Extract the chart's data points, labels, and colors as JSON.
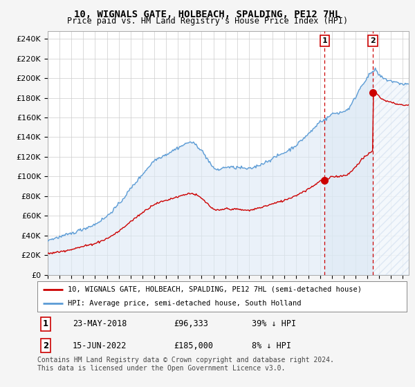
{
  "title": "10, WIGNALS GATE, HOLBEACH, SPALDING, PE12 7HL",
  "subtitle": "Price paid vs. HM Land Registry's House Price Index (HPI)",
  "ylabel_ticks": [
    "£0",
    "£20K",
    "£40K",
    "£60K",
    "£80K",
    "£100K",
    "£120K",
    "£140K",
    "£160K",
    "£180K",
    "£200K",
    "£220K",
    "£240K"
  ],
  "ytick_vals": [
    0,
    20000,
    40000,
    60000,
    80000,
    100000,
    120000,
    140000,
    160000,
    180000,
    200000,
    220000,
    240000
  ],
  "ylim": [
    0,
    248000
  ],
  "xlim_start": 1995.0,
  "xlim_end": 2025.5,
  "sale1_date": 2018.39,
  "sale1_price": 96333,
  "sale2_date": 2022.46,
  "sale2_price": 185000,
  "legend_line1": "10, WIGNALS GATE, HOLBEACH, SPALDING, PE12 7HL (semi-detached house)",
  "legend_line2": "HPI: Average price, semi-detached house, South Holland",
  "footer": "Contains HM Land Registry data © Crown copyright and database right 2024.\nThis data is licensed under the Open Government Licence v3.0.",
  "hpi_color": "#5b9bd5",
  "price_color": "#cc0000",
  "vline_color": "#cc0000",
  "hpi_fill_color": "#dce9f5",
  "background_color": "#f5f5f5"
}
